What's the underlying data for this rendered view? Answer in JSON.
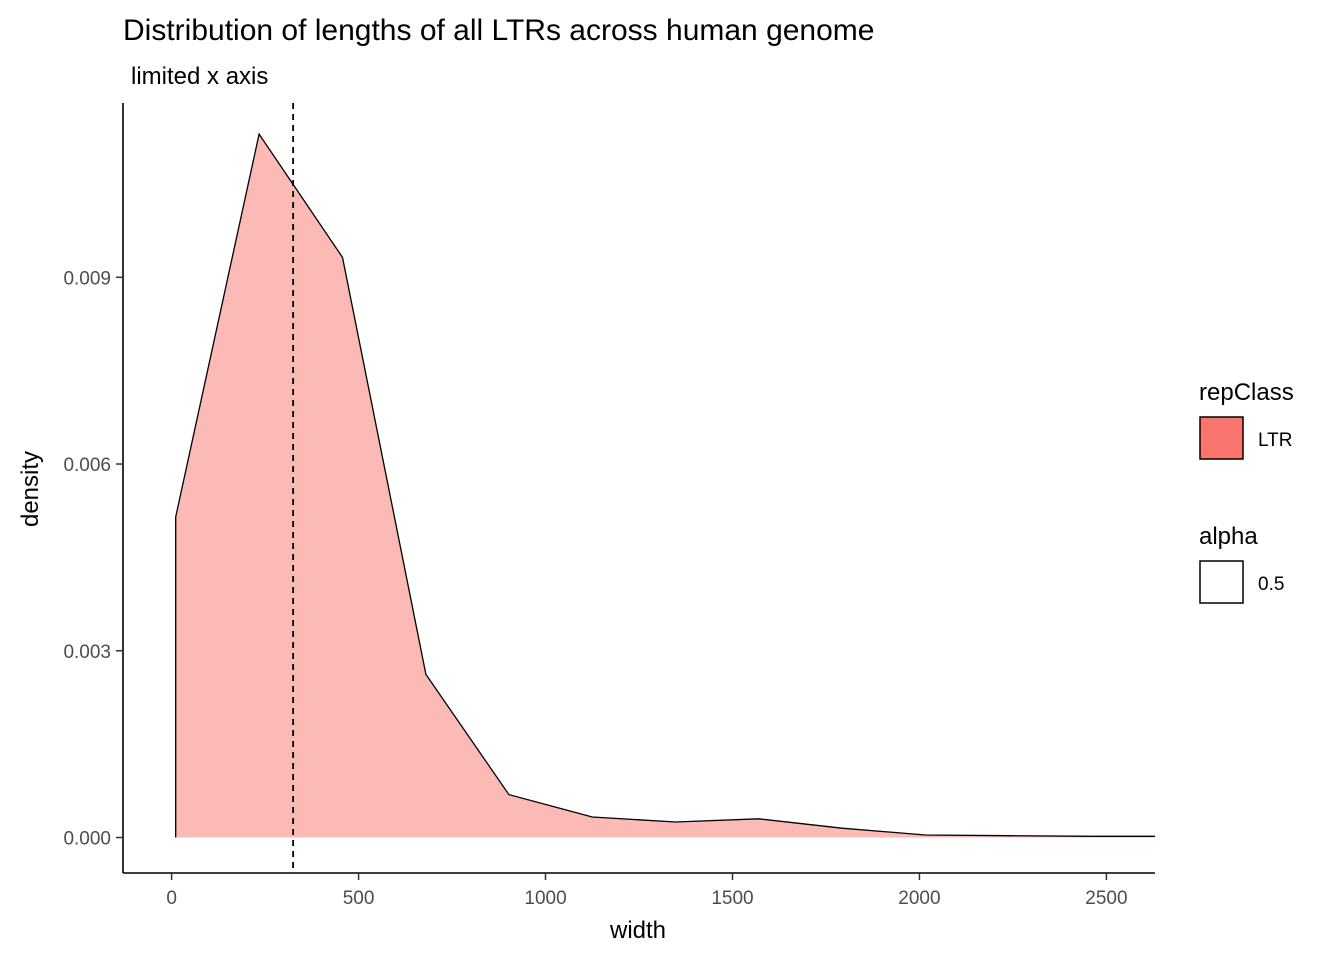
{
  "chart_data": {
    "type": "area",
    "title": "Distribution of lengths of all LTRs across human genome",
    "subtitle": "limited x axis",
    "xlabel": "width",
    "ylabel": "density",
    "xlim": [
      -130,
      2630
    ],
    "ylim": [
      -0.00057,
      0.0118
    ],
    "x_ticks": [
      0,
      500,
      1000,
      1500,
      2000,
      2500
    ],
    "x_tick_labels": [
      "0",
      "500",
      "1000",
      "1500",
      "2000",
      "2500"
    ],
    "y_ticks": [
      0.0,
      0.003,
      0.006,
      0.009
    ],
    "y_tick_labels": [
      "0.000",
      "0.003",
      "0.006",
      "0.009"
    ],
    "grid": false,
    "vline": {
      "x": 325,
      "style": "dashed"
    },
    "series": [
      {
        "fill": "#F8766D",
        "alpha": 0.5,
        "x": [
          11,
          234,
          457,
          680,
          902,
          1125,
          1348,
          1570,
          1793,
          2016,
          2239,
          2462,
          2630
        ],
        "y": [
          0.00515,
          0.0113,
          0.00932,
          0.00262,
          0.00069,
          0.00033,
          0.00025,
          0.0003,
          0.00015,
          4e-05,
          3e-05,
          2e-05,
          2e-05
        ]
      }
    ],
    "legends": [
      {
        "title": "repClass",
        "items": [
          {
            "label": "LTR",
            "fill": "#F8766D"
          }
        ]
      },
      {
        "title": "alpha",
        "items": [
          {
            "label": "0.5",
            "fill": "#ffffff"
          }
        ]
      }
    ],
    "legend_position": "right"
  }
}
